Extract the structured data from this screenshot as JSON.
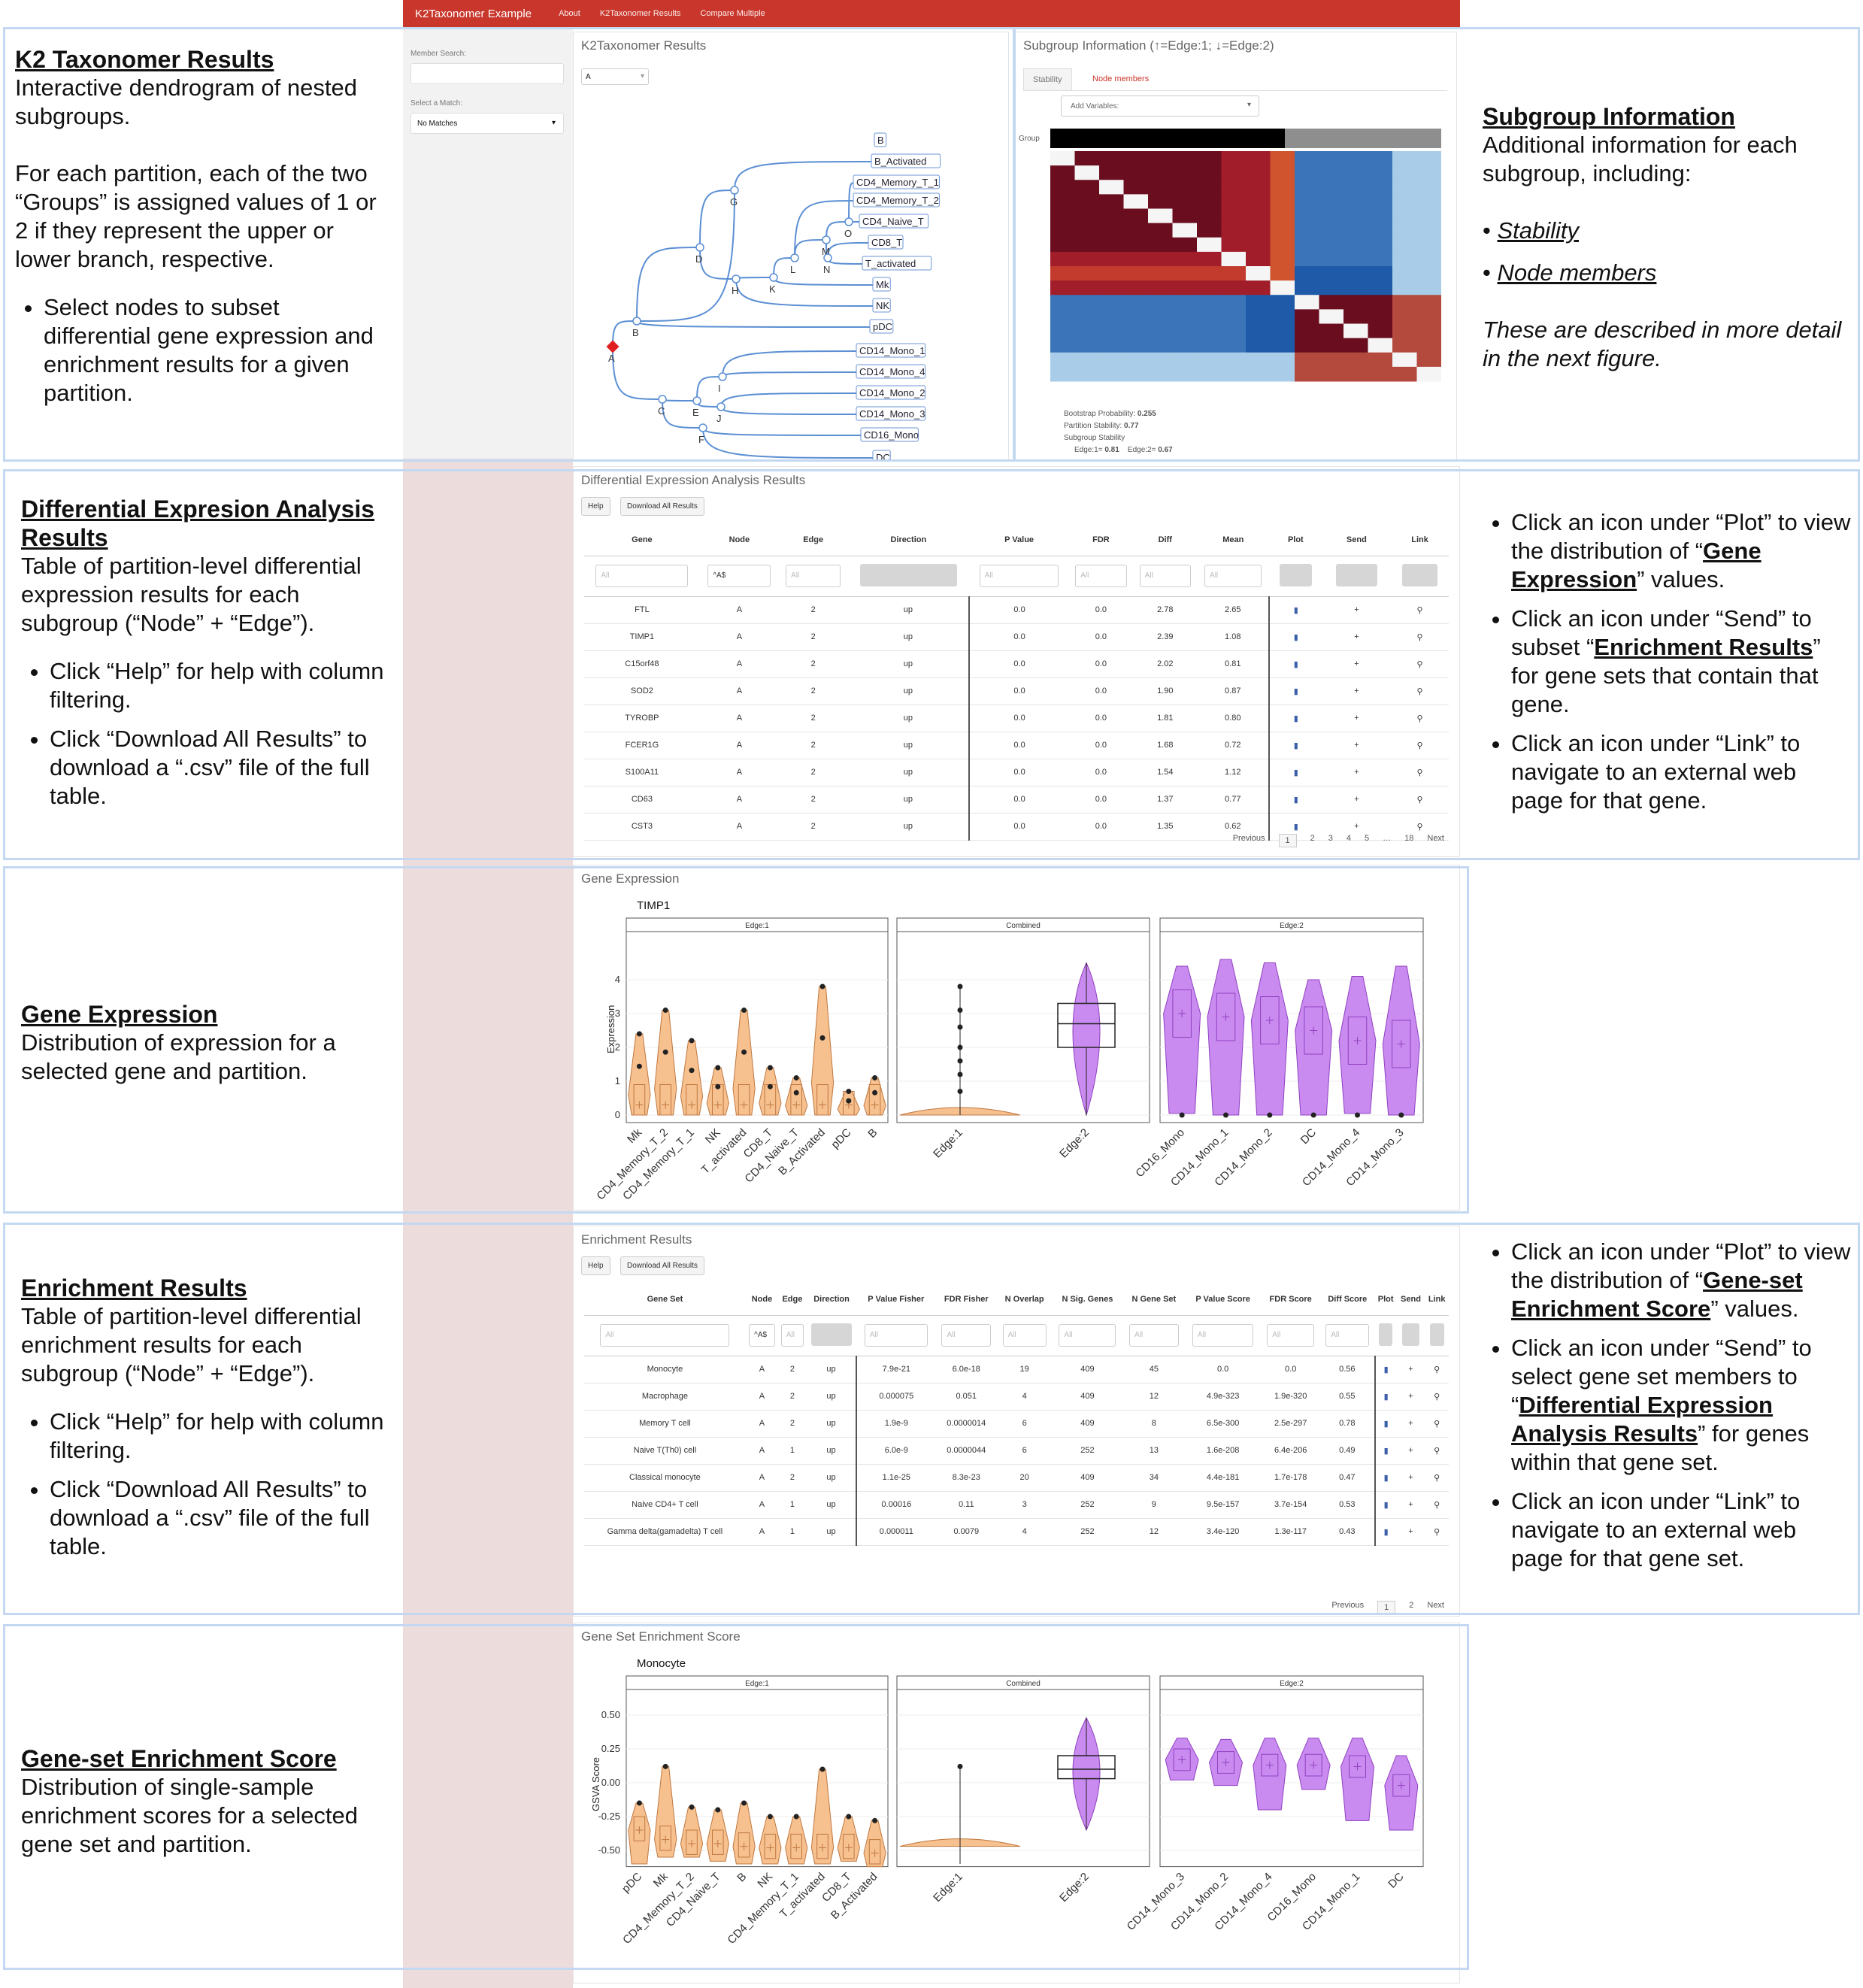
{
  "navbar": {
    "brand": "K2Taxonomer Example",
    "items": [
      "About",
      "K2Taxonomer Results",
      "Compare Multiple"
    ]
  },
  "sidebar": {
    "member_search_label": "Member Search:",
    "match_label": "Select a Match:",
    "match_value": "No Matches"
  },
  "dendro": {
    "title": "K2Taxonomer Results",
    "select_value": "A",
    "leaves": [
      "B",
      "B_Activated",
      "CD4_Memory_T_1",
      "CD4_Memory_T_2",
      "CD4_Naive_T",
      "CD8_T",
      "T_activated",
      "Mk",
      "NK",
      "pDC",
      "CD14_Mono_1",
      "CD14_Mono_4",
      "CD14_Mono_2",
      "CD14_Mono_3",
      "CD16_Mono",
      "DC"
    ],
    "nodes": [
      "A",
      "B",
      "C",
      "D",
      "E",
      "F",
      "G",
      "H",
      "I",
      "J",
      "K",
      "L",
      "M",
      "N",
      "O"
    ]
  },
  "subgroup": {
    "title": "Subgroup Information (↑=Edge:1; ↓=Edge:2)",
    "tabs": [
      "Stability",
      "Node members"
    ],
    "add_variables": "Add Variables:",
    "group_label": "Group",
    "stats": [
      "Bootstrap Probability:",
      "0.255",
      "Partition Stability:",
      "0.77",
      "Subgroup Stability",
      "Edge:1=",
      "0.81",
      "Edge:2=",
      "0.67"
    ]
  },
  "dea": {
    "title": "Differential Expression Analysis Results",
    "help": "Help",
    "download": "Download All Results",
    "columns": [
      "Gene",
      "Node",
      "Edge",
      "Direction",
      "P Value",
      "FDR",
      "Diff",
      "Mean",
      "Plot",
      "Send",
      "Link"
    ],
    "filters": [
      "All",
      "^A$",
      "All",
      "",
      "All",
      "All",
      "All",
      "All"
    ],
    "rows": [
      [
        "FTL",
        "A",
        "2",
        "up",
        "0.0",
        "0.0",
        "2.78",
        "2.65"
      ],
      [
        "TIMP1",
        "A",
        "2",
        "up",
        "0.0",
        "0.0",
        "2.39",
        "1.08"
      ],
      [
        "C15orf48",
        "A",
        "2",
        "up",
        "0.0",
        "0.0",
        "2.02",
        "0.81"
      ],
      [
        "SOD2",
        "A",
        "2",
        "up",
        "0.0",
        "0.0",
        "1.90",
        "0.87"
      ],
      [
        "TYROBP",
        "A",
        "2",
        "up",
        "0.0",
        "0.0",
        "1.81",
        "0.80"
      ],
      [
        "FCER1G",
        "A",
        "2",
        "up",
        "0.0",
        "0.0",
        "1.68",
        "0.72"
      ],
      [
        "S100A11",
        "A",
        "2",
        "up",
        "0.0",
        "0.0",
        "1.54",
        "1.12"
      ],
      [
        "CD63",
        "A",
        "2",
        "up",
        "0.0",
        "0.0",
        "1.37",
        "0.77"
      ],
      [
        "CST3",
        "A",
        "2",
        "up",
        "0.0",
        "0.0",
        "1.35",
        "0.62"
      ]
    ],
    "pager": [
      "Previous",
      "1",
      "2",
      "3",
      "4",
      "5",
      "…",
      "18",
      "Next"
    ]
  },
  "gene_expr": {
    "title": "Gene Expression",
    "gene": "TIMP1",
    "ylabel": "Expression",
    "yticks": [
      "4",
      "3",
      "2",
      "1",
      "0"
    ],
    "facets": [
      "Edge:1",
      "Combined",
      "Edge:2"
    ],
    "edge1_cats": [
      "Mk",
      "CD4_Memory_T_2",
      "CD4_Memory_T_1",
      "NK",
      "T_activated",
      "CD8_T",
      "CD4_Naive_T",
      "B_Activated",
      "pDC",
      "B"
    ],
    "combined_cats": [
      "Edge:1",
      "Edge:2"
    ],
    "edge2_cats": [
      "CD16_Mono",
      "CD14_Mono_1",
      "CD14_Mono_2",
      "DC",
      "CD14_Mono_4",
      "CD14_Mono_3"
    ]
  },
  "enrich": {
    "title": "Enrichment Results",
    "help": "Help",
    "download": "Download All Results",
    "columns": [
      "Gene Set",
      "Node",
      "Edge",
      "Direction",
      "P Value Fisher",
      "FDR Fisher",
      "N Overlap",
      "N Sig. Genes",
      "N Gene Set",
      "P Value Score",
      "FDR Score",
      "Diff Score",
      "Plot",
      "Send",
      "Link"
    ],
    "filters": [
      "All",
      "^A$",
      "All",
      "",
      "All",
      "All",
      "All",
      "All",
      "All",
      "All",
      "All",
      "All"
    ],
    "rows": [
      [
        "Monocyte",
        "A",
        "2",
        "up",
        "7.9e-21",
        "6.0e-18",
        "19",
        "409",
        "45",
        "0.0",
        "0.0",
        "0.56"
      ],
      [
        "Macrophage",
        "A",
        "2",
        "up",
        "0.000075",
        "0.051",
        "4",
        "409",
        "12",
        "4.9e-323",
        "1.9e-320",
        "0.55"
      ],
      [
        "Memory T cell",
        "A",
        "2",
        "up",
        "1.9e-9",
        "0.0000014",
        "6",
        "409",
        "8",
        "6.5e-300",
        "2.5e-297",
        "0.78"
      ],
      [
        "Naive T(Th0) cell",
        "A",
        "1",
        "up",
        "6.0e-9",
        "0.0000044",
        "6",
        "252",
        "13",
        "1.6e-208",
        "6.4e-206",
        "0.49"
      ],
      [
        "Classical monocyte",
        "A",
        "2",
        "up",
        "1.1e-25",
        "8.3e-23",
        "20",
        "409",
        "34",
        "4.4e-181",
        "1.7e-178",
        "0.47"
      ],
      [
        "Naive CD4+ T cell",
        "A",
        "1",
        "up",
        "0.00016",
        "0.11",
        "3",
        "252",
        "9",
        "9.5e-157",
        "3.7e-154",
        "0.53"
      ],
      [
        "Gamma delta(gamadelta) T cell",
        "A",
        "1",
        "up",
        "0.000011",
        "0.0079",
        "4",
        "252",
        "12",
        "3.4e-120",
        "1.3e-117",
        "0.43"
      ]
    ],
    "pager": [
      "Previous",
      "1",
      "2",
      "Next"
    ]
  },
  "gsea": {
    "title": "Gene Set Enrichment Score",
    "gene_set": "Monocyte",
    "ylabel": "GSVA Score",
    "yticks": [
      "0.50",
      "0.25",
      "0.00",
      "-0.25",
      "-0.50"
    ],
    "facets": [
      "Edge:1",
      "Combined",
      "Edge:2"
    ],
    "edge1_cats": [
      "pDC",
      "Mk",
      "CD4_Memory_T_2",
      "CD4_Naive_T",
      "B",
      "NK",
      "CD4_Memory_T_1",
      "T_activated",
      "CD8_T",
      "B_Activated"
    ],
    "combined_cats": [
      "Edge:1",
      "Edge:2"
    ],
    "edge2_cats": [
      "CD14_Mono_3",
      "CD14_Mono_2",
      "CD14_Mono_4",
      "CD16_Mono",
      "CD14_Mono_1",
      "DC"
    ]
  },
  "annotations": {
    "k2_title": "K2 Taxonomer Results",
    "k2_sub": "Interactive dendrogram of nested subgroups.",
    "k2_p": "For each partition, each of the two “Groups” is assigned values of 1 or 2 if they represent the upper or lower branch, respective.",
    "k2_li": "Select nodes to subset differential gene expression and enrichment results for a given partition.",
    "sg_title": "Subgroup Information",
    "sg_sub": "Additional information for each subgroup, including:",
    "sg_b1": "Stability",
    "sg_b2": "Node members",
    "sg_note": "These are described in more detail in the next figure.",
    "dea_title": "Differential Expresion Analysis Results",
    "dea_sub": "Table of partition-level differential expression results for each subgroup (“Node” + “Edge”).",
    "dea_li1": "Click “Help” for help with column filtering.",
    "dea_li2": "Click “Download All Results” to download a “.csv” file of the full table.",
    "dea_r1a": "Click an icon under “Plot” to view the distribution of “",
    "dea_r1b": "Gene Expression",
    "dea_r1c": "” values.",
    "dea_r2a": "Click an icon under “Send” to subset “",
    "dea_r2b": "Enrichment Results",
    "dea_r2c": "” for gene sets that contain that gene.",
    "dea_r3": "Click an icon under “Link” to navigate to an external web page for that gene.",
    "ge_title": "Gene Expression",
    "ge_sub": "Distribution of expression for a selected gene and partition.",
    "en_title": "Enrichment Results",
    "en_sub": "Table of partition-level differential enrichment results for each subgroup (“Node” + “Edge”).",
    "en_li1": "Click “Help” for help with column filtering.",
    "en_li2": "Click “Download All Results” to download a “.csv” file of the full table.",
    "en_r1a": "Click an icon under “Plot” to view the distribution of “",
    "en_r1b": "Gene-set Enrichment Score",
    "en_r1c": "” values.",
    "en_r2a": "Click an icon under “Send” to select gene set members to “",
    "en_r2b": "Differential Expression Analysis Results",
    "en_r2c": "” for genes within that gene set.",
    "en_r3": "Click an icon under “Link” to navigate to an external web page for that gene set.",
    "gs_title": "Gene-set Enrichment Score",
    "gs_sub": "Distribution of single-sample enrichment scores for a selected gene set and partition."
  },
  "colors": {
    "navbar": "#c9372c",
    "orange": "#f6c08f",
    "purple": "#c98bf0",
    "dark_red": "#6a0d1f",
    "blue": "#3b74b8",
    "dendro_line": "#5b8fd3"
  }
}
